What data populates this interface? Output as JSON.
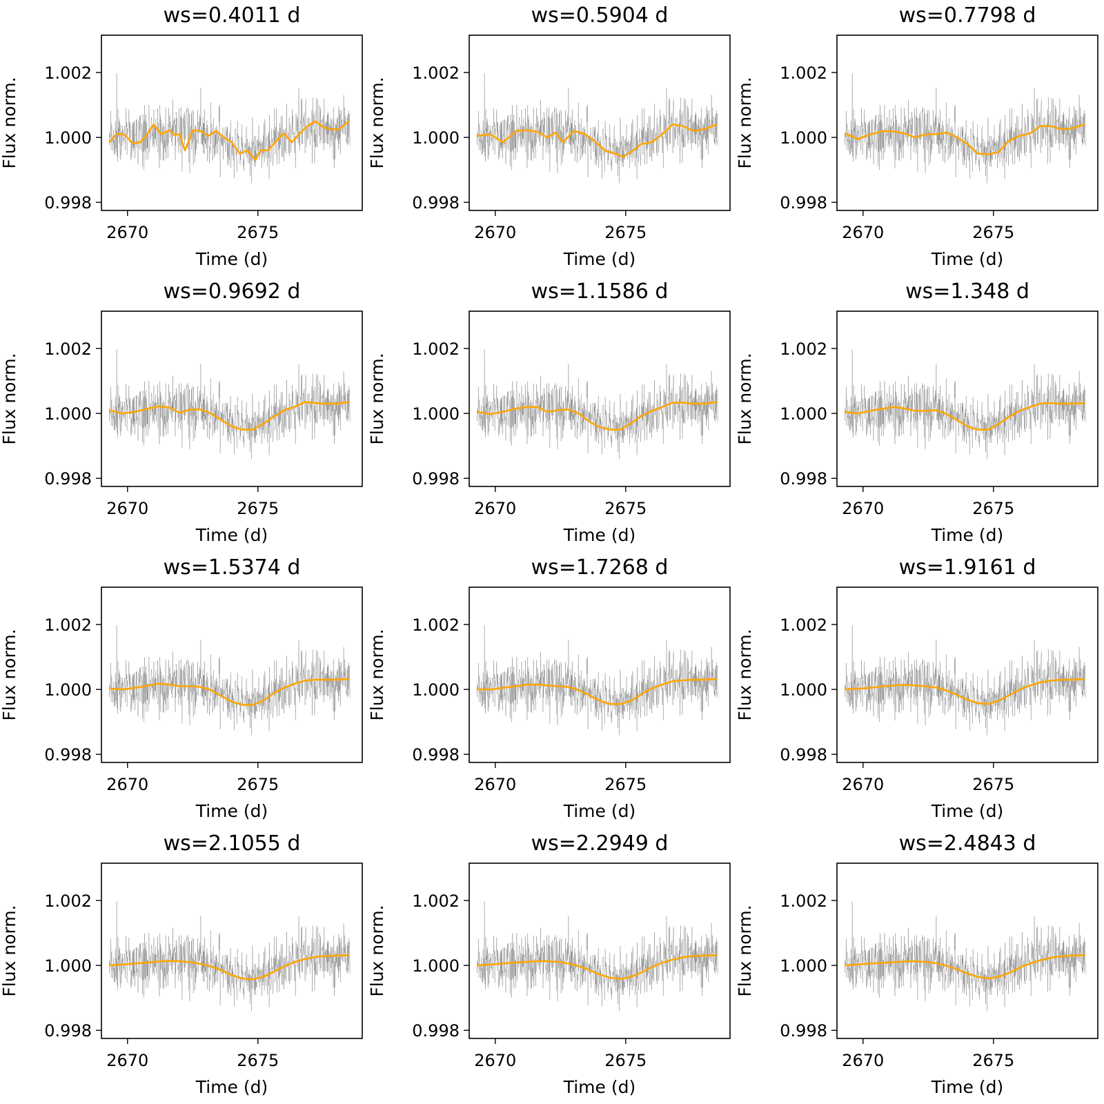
{
  "chart_data": {
    "type": "line",
    "layout": "4x3 grid of subplots",
    "colors": {
      "raw": "#3c3c3c",
      "trend": "#ffa500",
      "axes": "#000000"
    },
    "shared": {
      "xlabel": "Time (d)",
      "ylabel": "Flux norm.",
      "xticks": [
        2670,
        2675
      ],
      "yticks": [
        "0.998",
        "1.000",
        "1.002"
      ],
      "xlim": [
        2669.0,
        2679.0
      ],
      "ylim": [
        0.99775,
        1.00315
      ],
      "grid": false,
      "legend": "none"
    },
    "series_names": {
      "raw": "",
      "trend": ""
    },
    "panels": [
      {
        "title": "ws=0.4011 d",
        "window_days": 0.4011,
        "trend": {
          "x": [
            2669.3,
            2669.6,
            2669.9,
            2670.2,
            2670.5,
            2670.75,
            2671.0,
            2671.3,
            2671.6,
            2671.8,
            2672.0,
            2672.2,
            2672.5,
            2672.8,
            2673.1,
            2673.4,
            2673.7,
            2674.0,
            2674.3,
            2674.6,
            2674.9,
            2675.1,
            2675.4,
            2675.7,
            2676.0,
            2676.3,
            2676.6,
            2676.9,
            2677.2,
            2677.5,
            2677.8,
            2678.1,
            2678.5
          ],
          "y": [
            0.99985,
            1.00012,
            1.00008,
            0.99982,
            0.99985,
            1.0001,
            1.0004,
            1.0001,
            1.00022,
            1.00008,
            1.0001,
            0.9996,
            1.00022,
            1.0002,
            1.00005,
            1.0002,
            1.0,
            0.99985,
            0.9995,
            0.9996,
            0.9993,
            0.9996,
            0.9996,
            0.9999,
            1.00012,
            0.99985,
            1.00012,
            1.00035,
            1.0005,
            1.00032,
            1.00025,
            1.00025,
            1.0005
          ]
        }
      },
      {
        "title": "ws=0.5904 d",
        "window_days": 0.5904,
        "trend": {
          "x": [
            2669.3,
            2669.8,
            2670.3,
            2670.8,
            2671.2,
            2671.6,
            2672.0,
            2672.3,
            2672.6,
            2673.0,
            2673.4,
            2673.8,
            2674.2,
            2674.6,
            2674.9,
            2675.2,
            2675.6,
            2676.0,
            2676.4,
            2676.8,
            2677.2,
            2677.6,
            2678.0,
            2678.5
          ],
          "y": [
            1.00005,
            1.0001,
            0.99985,
            1.0002,
            1.00022,
            1.00018,
            1.0,
            1.00015,
            0.99985,
            1.0002,
            1.00012,
            0.9999,
            0.9996,
            0.9995,
            0.9994,
            0.99955,
            0.9998,
            0.99985,
            1.0001,
            1.0004,
            1.00035,
            1.0002,
            1.00025,
            1.0004
          ]
        }
      },
      {
        "title": "ws=0.7798 d",
        "window_days": 0.7798,
        "trend": {
          "x": [
            2669.3,
            2669.8,
            2670.3,
            2670.8,
            2671.2,
            2671.6,
            2672.0,
            2672.4,
            2672.8,
            2673.2,
            2673.6,
            2674.0,
            2674.4,
            2674.8,
            2675.2,
            2675.6,
            2676.0,
            2676.4,
            2676.8,
            2677.2,
            2677.6,
            2678.0,
            2678.5
          ],
          "y": [
            1.00012,
            0.99995,
            1.0001,
            1.0002,
            1.00018,
            1.00012,
            1.0,
            1.0001,
            1.0001,
            1.00015,
            1.0,
            0.9998,
            0.9995,
            0.99948,
            0.99955,
            0.9999,
            1.00005,
            1.00012,
            1.00035,
            1.00035,
            1.00025,
            1.00028,
            1.0004
          ]
        }
      },
      {
        "title": "ws=0.9692 d",
        "window_days": 0.9692,
        "trend": {
          "x": [
            2669.3,
            2669.8,
            2670.3,
            2670.8,
            2671.2,
            2671.6,
            2672.0,
            2672.4,
            2672.8,
            2673.2,
            2673.6,
            2674.0,
            2674.4,
            2674.8,
            2675.2,
            2675.6,
            2676.0,
            2676.4,
            2676.8,
            2677.2,
            2677.6,
            2678.0,
            2678.5
          ],
          "y": [
            1.0001,
            1.0,
            1.00005,
            1.00015,
            1.00022,
            1.00018,
            1.00002,
            1.00012,
            1.00012,
            1.0,
            0.9998,
            0.9996,
            0.9995,
            0.9995,
            0.99968,
            0.9999,
            1.0001,
            1.0002,
            1.00035,
            1.00032,
            1.0003,
            1.0003,
            1.00035
          ]
        }
      },
      {
        "title": "ws=1.1586 d",
        "window_days": 1.1586,
        "trend": {
          "x": [
            2669.3,
            2669.8,
            2670.3,
            2670.8,
            2671.2,
            2671.6,
            2672.0,
            2672.4,
            2672.8,
            2673.2,
            2673.6,
            2674.0,
            2674.4,
            2674.8,
            2675.2,
            2675.6,
            2676.0,
            2676.4,
            2676.8,
            2677.2,
            2677.6,
            2678.0,
            2678.5
          ],
          "y": [
            1.00005,
            0.99998,
            1.00005,
            1.00015,
            1.0002,
            1.0002,
            1.00005,
            1.0001,
            1.00012,
            1.0,
            0.99975,
            0.99958,
            0.9995,
            0.9995,
            0.9997,
            0.99992,
            1.00008,
            1.0002,
            1.00033,
            1.00033,
            1.0003,
            1.0003,
            1.00035
          ]
        }
      },
      {
        "title": "ws=1.348 d",
        "window_days": 1.348,
        "trend": {
          "x": [
            2669.3,
            2669.8,
            2670.3,
            2670.8,
            2671.2,
            2671.6,
            2672.0,
            2672.4,
            2672.8,
            2673.2,
            2673.6,
            2674.0,
            2674.4,
            2674.8,
            2675.2,
            2675.6,
            2676.0,
            2676.4,
            2676.8,
            2677.2,
            2677.6,
            2678.0,
            2678.5
          ],
          "y": [
            1.00005,
            1.0,
            1.00008,
            1.00015,
            1.0002,
            1.00015,
            1.00008,
            1.00008,
            1.0001,
            0.99998,
            0.9998,
            0.9996,
            0.9995,
            0.9995,
            0.99968,
            0.9999,
            1.00008,
            1.0002,
            1.0003,
            1.00032,
            1.0003,
            1.0003,
            1.00032
          ]
        }
      },
      {
        "title": "ws=1.5374 d",
        "window_days": 1.5374,
        "trend": {
          "x": [
            2669.3,
            2669.8,
            2670.3,
            2670.8,
            2671.2,
            2671.6,
            2672.0,
            2672.4,
            2672.8,
            2673.2,
            2673.6,
            2674.0,
            2674.4,
            2674.8,
            2675.2,
            2675.6,
            2676.0,
            2676.4,
            2676.8,
            2677.2,
            2677.6,
            2678.0,
            2678.5
          ],
          "y": [
            1.00003,
            1.0,
            1.00005,
            1.00012,
            1.00018,
            1.00015,
            1.0001,
            1.0001,
            1.00008,
            0.99998,
            0.9998,
            0.99962,
            0.99953,
            0.99952,
            0.99965,
            0.99988,
            1.00005,
            1.00018,
            1.00027,
            1.0003,
            1.0003,
            1.0003,
            1.00032
          ]
        }
      },
      {
        "title": "ws=1.7268 d",
        "window_days": 1.7268,
        "trend": {
          "x": [
            2669.3,
            2669.8,
            2670.3,
            2670.8,
            2671.2,
            2671.6,
            2672.0,
            2672.4,
            2672.8,
            2673.2,
            2673.6,
            2674.0,
            2674.4,
            2674.8,
            2675.2,
            2675.6,
            2676.0,
            2676.4,
            2676.8,
            2677.2,
            2677.6,
            2678.0,
            2678.5
          ],
          "y": [
            1.0,
            1.0,
            1.00005,
            1.0001,
            1.00015,
            1.00015,
            1.00012,
            1.0001,
            1.00008,
            0.99998,
            0.99982,
            0.99965,
            0.99955,
            0.99955,
            0.99965,
            0.99985,
            1.00003,
            1.00015,
            1.00025,
            1.00028,
            1.0003,
            1.0003,
            1.00032
          ]
        }
      },
      {
        "title": "ws=1.9161 d",
        "window_days": 1.9161,
        "trend": {
          "x": [
            2669.3,
            2669.8,
            2670.3,
            2670.8,
            2671.2,
            2671.6,
            2672.0,
            2672.4,
            2672.8,
            2673.2,
            2673.6,
            2674.0,
            2674.4,
            2674.8,
            2675.2,
            2675.6,
            2676.0,
            2676.4,
            2676.8,
            2677.2,
            2677.6,
            2678.0,
            2678.5
          ],
          "y": [
            1.0,
            1.00002,
            1.00005,
            1.0001,
            1.00012,
            1.00014,
            1.00012,
            1.0001,
            1.00006,
            0.99997,
            0.99983,
            0.99968,
            0.99958,
            0.99955,
            0.99965,
            0.99982,
            1.0,
            1.00012,
            1.00022,
            1.00027,
            1.0003,
            1.0003,
            1.00032
          ]
        }
      },
      {
        "title": "ws=2.1055 d",
        "window_days": 2.1055,
        "trend": {
          "x": [
            2669.3,
            2669.8,
            2670.3,
            2670.8,
            2671.2,
            2671.6,
            2672.0,
            2672.4,
            2672.8,
            2673.2,
            2673.6,
            2674.0,
            2674.4,
            2674.8,
            2675.2,
            2675.6,
            2676.0,
            2676.4,
            2676.8,
            2677.2,
            2677.6,
            2678.0,
            2678.5
          ],
          "y": [
            1.0,
            1.00003,
            1.00006,
            1.00009,
            1.00012,
            1.00014,
            1.00013,
            1.0001,
            1.00005,
            0.99997,
            0.99985,
            0.9997,
            0.9996,
            0.99957,
            0.99965,
            0.9998,
            0.99997,
            1.0001,
            1.0002,
            1.00026,
            1.00029,
            1.0003,
            1.00032
          ]
        }
      },
      {
        "title": "ws=2.2949 d",
        "window_days": 2.2949,
        "trend": {
          "x": [
            2669.3,
            2669.8,
            2670.3,
            2670.8,
            2671.2,
            2671.6,
            2672.0,
            2672.4,
            2672.8,
            2673.2,
            2673.6,
            2674.0,
            2674.4,
            2674.8,
            2675.2,
            2675.6,
            2676.0,
            2676.4,
            2676.8,
            2677.2,
            2677.6,
            2678.0,
            2678.5
          ],
          "y": [
            1.0,
            1.00003,
            1.00006,
            1.00009,
            1.00011,
            1.00013,
            1.00013,
            1.00011,
            1.00006,
            0.99998,
            0.99986,
            0.99972,
            0.99962,
            0.99958,
            0.99965,
            0.99978,
            0.99995,
            1.00008,
            1.00018,
            1.00025,
            1.00029,
            1.0003,
            1.00032
          ]
        }
      },
      {
        "title": "ws=2.4843 d",
        "window_days": 2.4843,
        "trend": {
          "x": [
            2669.3,
            2669.8,
            2670.3,
            2670.8,
            2671.2,
            2671.6,
            2672.0,
            2672.4,
            2672.8,
            2673.2,
            2673.6,
            2674.0,
            2674.4,
            2674.8,
            2675.2,
            2675.6,
            2676.0,
            2676.4,
            2676.8,
            2677.2,
            2677.6,
            2678.0,
            2678.5
          ],
          "y": [
            1.0,
            1.00003,
            1.00006,
            1.00008,
            1.0001,
            1.00012,
            1.00013,
            1.00011,
            1.00007,
            0.99999,
            0.99988,
            0.99975,
            0.99965,
            0.9996,
            0.99965,
            0.99977,
            0.99993,
            1.00006,
            1.00016,
            1.00024,
            1.00028,
            1.0003,
            1.00032
          ]
        }
      }
    ]
  }
}
